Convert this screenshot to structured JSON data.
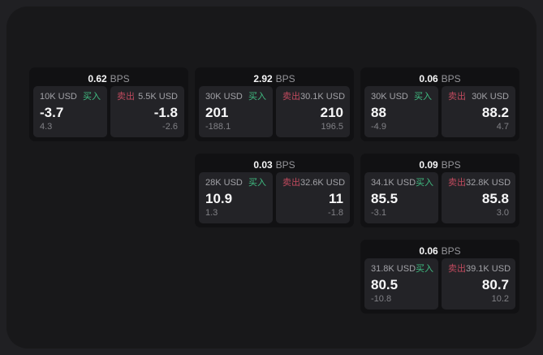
{
  "labels": {
    "buy": "买入",
    "sell": "卖出",
    "bps": "BPS"
  },
  "colors": {
    "buy_green": "#40bd82",
    "sell_red": "#c04a5e",
    "panel_bg": "#18181a",
    "card_bg": "#111113",
    "subcard_bg": "#232327"
  },
  "cards": [
    {
      "bps": "0.62",
      "buy": {
        "amount": "10K USD",
        "value": "-3.7",
        "delta": "4.3"
      },
      "sell": {
        "amount": "5.5K USD",
        "value": "-1.8",
        "delta": "-2.6"
      }
    },
    {
      "bps": "2.92",
      "buy": {
        "amount": "30K USD",
        "value": "201",
        "delta": "-188.1"
      },
      "sell": {
        "amount": "30.1K USD",
        "value": "210",
        "delta": "196.5"
      }
    },
    {
      "bps": "0.06",
      "buy": {
        "amount": "30K USD",
        "value": "88",
        "delta": "-4.9"
      },
      "sell": {
        "amount": "30K USD",
        "value": "88.2",
        "delta": "4.7"
      }
    },
    {
      "bps": "0.03",
      "buy": {
        "amount": "28K USD",
        "value": "10.9",
        "delta": "1.3"
      },
      "sell": {
        "amount": "32.6K USD",
        "value": "11",
        "delta": "-1.8"
      }
    },
    {
      "bps": "0.09",
      "buy": {
        "amount": "34.1K USD",
        "value": "85.5",
        "delta": "-3.1"
      },
      "sell": {
        "amount": "32.8K USD",
        "value": "85.8",
        "delta": "3.0"
      }
    },
    {
      "bps": "0.06",
      "buy": {
        "amount": "31.8K USD",
        "value": "80.5",
        "delta": "-10.8"
      },
      "sell": {
        "amount": "39.1K USD",
        "value": "80.7",
        "delta": "10.2"
      }
    }
  ]
}
